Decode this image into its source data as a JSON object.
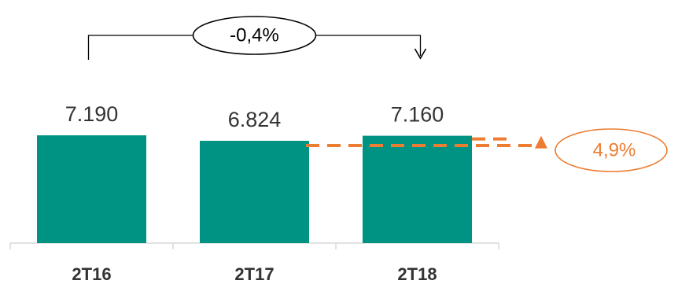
{
  "chart_data": {
    "type": "bar",
    "categories": [
      "2T16",
      "2T17",
      "2T18"
    ],
    "values": [
      7190,
      6824,
      7160
    ],
    "value_labels": [
      "7.190",
      "6.824",
      "7.160"
    ],
    "title": "",
    "xlabel": "",
    "ylabel": "",
    "ylim": [
      0,
      8000
    ],
    "grid": false,
    "legend": "none",
    "annotations": [
      {
        "text": "-0,4%",
        "from": "2T16",
        "to": "2T18",
        "color": "#000000"
      },
      {
        "text": "4,9%",
        "from": "2T17",
        "to": "2T18",
        "color": "#ED7D31"
      }
    ]
  },
  "colors": {
    "bar": "#009384",
    "orange": "#ED7D31",
    "axis": "#D9D9D9",
    "text": "#333333",
    "bracket": "#000000"
  }
}
